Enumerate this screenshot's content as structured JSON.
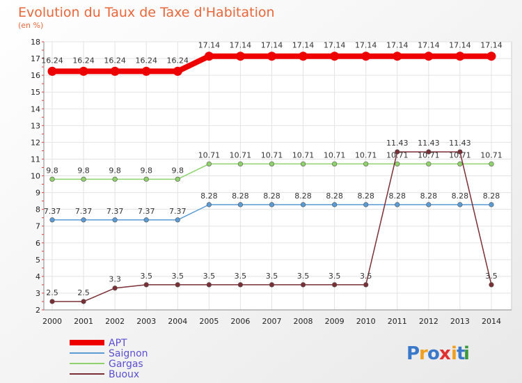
{
  "chart_data": {
    "type": "line",
    "title": "Evolution du Taux de Taxe d'Habitation",
    "subtitle": "(en %)",
    "x": [
      "2000",
      "2001",
      "2002",
      "2003",
      "2004",
      "2005",
      "2006",
      "2007",
      "2008",
      "2009",
      "2010",
      "2011",
      "2012",
      "2013",
      "2014"
    ],
    "ylim": [
      2,
      18
    ],
    "yticks": [
      2,
      3,
      4,
      5,
      6,
      7,
      8,
      9,
      10,
      11,
      12,
      13,
      14,
      15,
      16,
      17,
      18
    ],
    "grid": true,
    "legend_position": "bottom-left",
    "series": [
      {
        "name": "APT",
        "color": "#ee0000",
        "labels": [
          "16.24",
          "16.24",
          "16.24",
          "16.24",
          "16.24",
          "17.14",
          "17.14",
          "17.14",
          "17.14",
          "17.14",
          "17.14",
          "17.14",
          "17.14",
          "17.14",
          "17.14"
        ],
        "values": [
          16.24,
          16.24,
          16.24,
          16.24,
          16.24,
          17.14,
          17.14,
          17.14,
          17.14,
          17.14,
          17.14,
          17.14,
          17.14,
          17.14,
          17.14
        ]
      },
      {
        "name": "Saignon",
        "color": "#5b9bd5",
        "labels": [
          "7.37",
          "7.37",
          "7.37",
          "7.37",
          "7.37",
          "8.28",
          "8.28",
          "8.28",
          "8.28",
          "8.28",
          "8.28",
          "8.28",
          "8.28",
          "8.28",
          "8.28"
        ],
        "values": [
          7.37,
          7.37,
          7.37,
          7.37,
          7.37,
          8.28,
          8.28,
          8.28,
          8.28,
          8.28,
          8.28,
          8.28,
          8.28,
          8.28,
          8.28
        ]
      },
      {
        "name": "Gargas",
        "color": "#8fd26b",
        "labels": [
          "9.8",
          "9.8",
          "9.8",
          "9.8",
          "9.8",
          "10.71",
          "10.71",
          "10.71",
          "10.71",
          "10.71",
          "10.71",
          "10.71",
          "10.71",
          "10.71",
          "10.71"
        ],
        "values": [
          9.8,
          9.8,
          9.8,
          9.8,
          9.8,
          10.71,
          10.71,
          10.71,
          10.71,
          10.71,
          10.71,
          10.71,
          10.71,
          10.71,
          10.71
        ]
      },
      {
        "name": "Buoux",
        "color": "#7a2f35",
        "labels": [
          "2.5",
          "2.5",
          "3.3",
          "3.5",
          "3.5",
          "3.5",
          "3.5",
          "3.5",
          "3.5",
          "3.5",
          "3.5",
          "11.43",
          "11.43",
          "11.43",
          "3.5"
        ],
        "values": [
          2.5,
          2.5,
          3.3,
          3.5,
          3.5,
          3.5,
          3.5,
          3.5,
          3.5,
          3.5,
          3.5,
          11.43,
          11.43,
          11.43,
          3.5
        ]
      }
    ]
  },
  "logo": {
    "letters": [
      "P",
      "r",
      "o",
      "x",
      "i",
      "t",
      "i"
    ],
    "colors": [
      "#3a78c9",
      "#f0a020",
      "#3a78c9",
      "#e03030",
      "#f0a020",
      "#3a78c9",
      "#3a9a3a"
    ]
  }
}
